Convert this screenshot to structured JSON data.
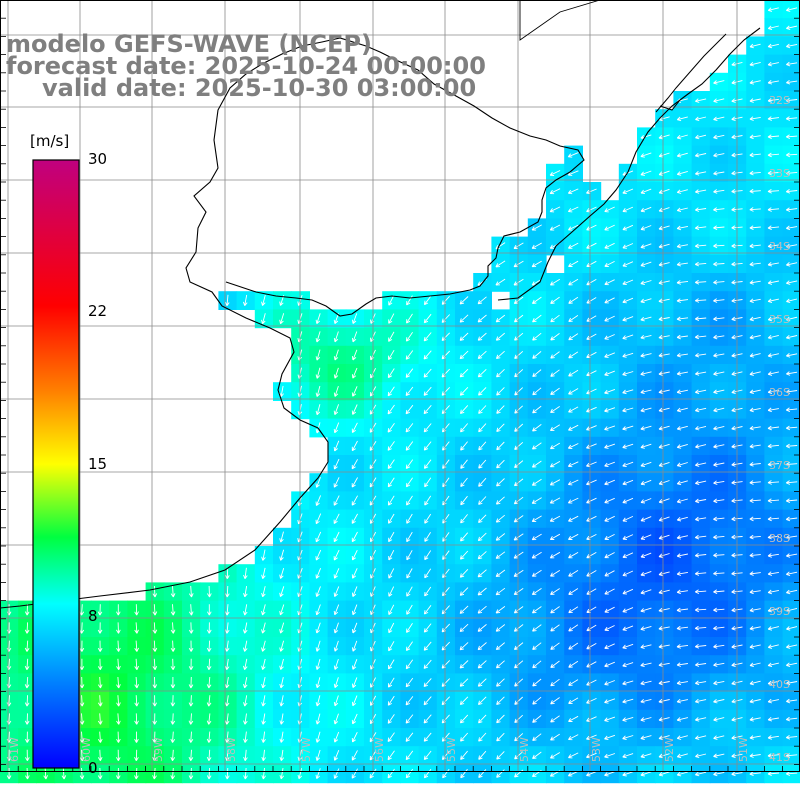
{
  "title": {
    "model": "modelo GEFS-WAVE (NCEP)",
    "forecast": "forecast date: 2025-10-24 00:00:00",
    "valid": "valid date: 2025-10-30 03:00:00"
  },
  "colorbar": {
    "unit": "[m/s]",
    "ticks": [
      "30",
      "22",
      "15",
      "8",
      "0"
    ],
    "tick_values": [
      30,
      22,
      15,
      8,
      0
    ],
    "range": [
      0,
      30
    ],
    "colors": [
      "#0000ff",
      "#00a0ff",
      "#00ffff",
      "#00ff00",
      "#ffff00",
      "#ff8000",
      "#ff0000",
      "#c0007f"
    ]
  },
  "latitude_labels": [
    "32S",
    "33S",
    "34S",
    "35S",
    "36S",
    "37S",
    "38S",
    "39S",
    "40S",
    "41S"
  ],
  "longitude_labels": [
    "61W",
    "60W",
    "59W",
    "58W",
    "57W",
    "56W",
    "55W",
    "54W",
    "53W",
    "52W",
    "51W"
  ],
  "chart_data": {
    "type": "heatmap",
    "variable": "wind speed",
    "unit": "m/s",
    "lat_range": [
      "31S",
      "41.5S"
    ],
    "lon_range": [
      "61.3W",
      "50.5W"
    ],
    "grid": true,
    "wind_direction": "predominantly from east/north-east, southward near the coast"
  },
  "colors": {
    "title": "#7f7f7f",
    "land": "#ffffff",
    "grid": "#8a8a8a",
    "vectors": "#ffffff",
    "labels": "#bdbdbd"
  }
}
